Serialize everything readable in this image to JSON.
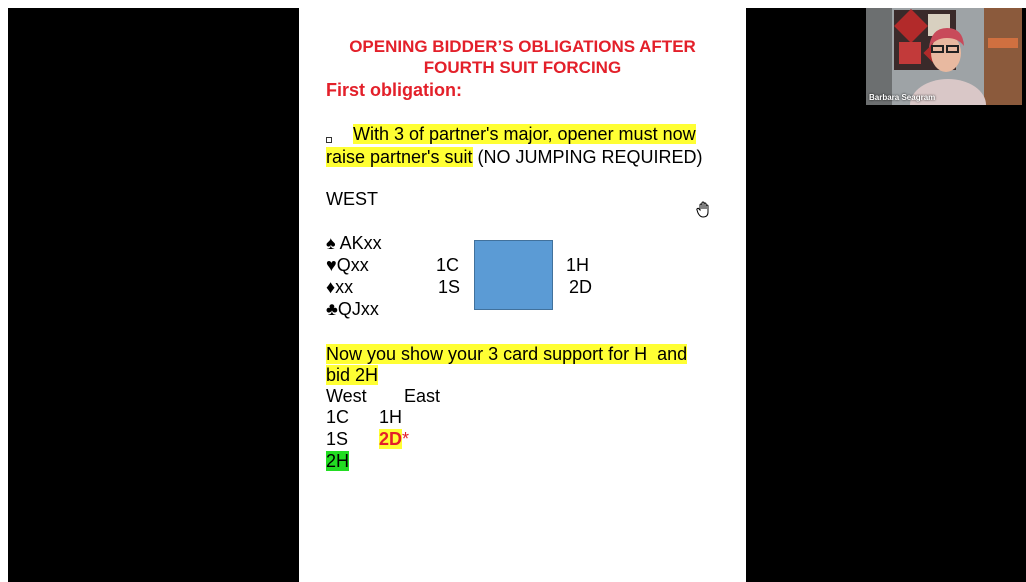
{
  "slide": {
    "title": [
      "OPENING BIDDER’S OBLIGATIONS AFTER",
      "FOURTH SUIT FORCING"
    ],
    "heading": "First obligation:",
    "bullet": {
      "highlighted": [
        "With 3 of partner's major, opener must now",
        "raise partner's suit"
      ],
      "rest": "(NO JUMPING REQUIRED)"
    },
    "hand_label": "WEST",
    "hand": [
      "♠ AKxx",
      "♥Qxx",
      "♦xx",
      "♣QJxx"
    ],
    "auction": {
      "west": [
        "1C",
        "1S"
      ],
      "east": [
        "1H",
        "2D"
      ]
    },
    "note": [
      "Now you show your 3 card support for H  and",
      "bid 2H"
    ],
    "sequence": {
      "header": [
        "West",
        "East"
      ],
      "rows": [
        [
          "1C",
          "1H"
        ],
        [
          "1S",
          "2D"
        ]
      ],
      "marker": "*",
      "answer": "2H"
    }
  },
  "participant": {
    "name": "Barbara Seagram"
  }
}
